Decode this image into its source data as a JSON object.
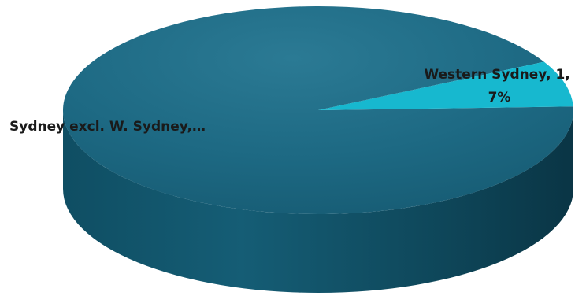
{
  "chart_data": {
    "type": "pie",
    "style": "3d",
    "categories": [
      "Sydney excl. W. Sydney",
      "Western Sydney"
    ],
    "values": [
      13,
      1
    ],
    "percent": [
      93,
      7
    ],
    "data_labels": [
      {
        "lines": [
          "Sydney excl. W. Sydney,…"
        ]
      },
      {
        "lines": [
          "Western Sydney, 1,",
          "7%"
        ]
      }
    ],
    "colors": [
      "#1b6782",
      "#17b8cf"
    ],
    "side_colors": [
      "#0d4457",
      "#0d7f90"
    ]
  }
}
